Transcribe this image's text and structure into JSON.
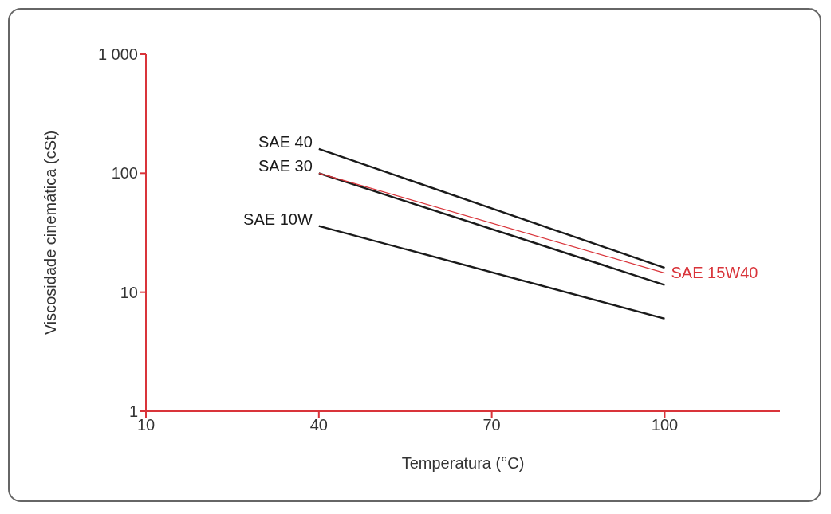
{
  "chart_data": {
    "type": "line",
    "xlabel": "Temperatura (°C)",
    "ylabel": "Viscosidade cinemática (cSt)",
    "log": "y",
    "xlim": [
      10,
      120
    ],
    "xticks": [
      10,
      40,
      70,
      100
    ],
    "ylim": [
      1,
      1000
    ],
    "yticks": [
      1,
      10,
      100,
      {
        "value": 1000,
        "label": "1 000"
      }
    ],
    "x": [
      40,
      100
    ],
    "marker": "none",
    "line_style": "solid",
    "series": [
      {
        "name": "SAE 40",
        "color": "#1a1a1a",
        "values": [
          160,
          16
        ]
      },
      {
        "name": "SAE 30",
        "color": "#1a1a1a",
        "values": [
          100,
          11.5
        ]
      },
      {
        "name": "SAE 10W",
        "color": "#1a1a1a",
        "values": [
          36,
          6
        ]
      },
      {
        "name": "SAE 15W40",
        "color": "#d9343a",
        "values": [
          100,
          14.5
        ]
      }
    ]
  }
}
